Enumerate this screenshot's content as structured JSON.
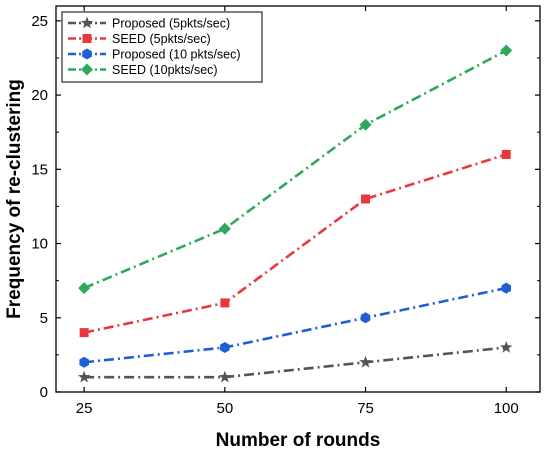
{
  "chart_data": {
    "type": "line",
    "title": "",
    "xlabel": "Number of rounds",
    "ylabel": "Frequency of re-clustering",
    "x": [
      25,
      50,
      75,
      100
    ],
    "xlim": [
      20,
      106
    ],
    "ylim": [
      0,
      26
    ],
    "xticks": [
      "25",
      "50",
      "75",
      "100"
    ],
    "yticks": [
      "0",
      "5",
      "10",
      "15",
      "20",
      "25"
    ],
    "grid": false,
    "legend_position": "top-left",
    "series": [
      {
        "name": "Proposed (5pkts/sec)",
        "values": [
          1,
          1,
          2,
          3
        ],
        "color": "#555555",
        "marker": "star"
      },
      {
        "name": "SEED (5pkts/sec)",
        "values": [
          4,
          6,
          13,
          16
        ],
        "color": "#e8383d",
        "marker": "square"
      },
      {
        "name": "Proposed (10 pkts/sec)",
        "values": [
          2,
          3,
          5,
          7
        ],
        "color": "#1f5fd6",
        "marker": "hexagon"
      },
      {
        "name": "SEED (10pkts/sec)",
        "values": [
          7,
          11,
          18,
          23
        ],
        "color": "#2ea85a",
        "marker": "diamond"
      }
    ]
  }
}
